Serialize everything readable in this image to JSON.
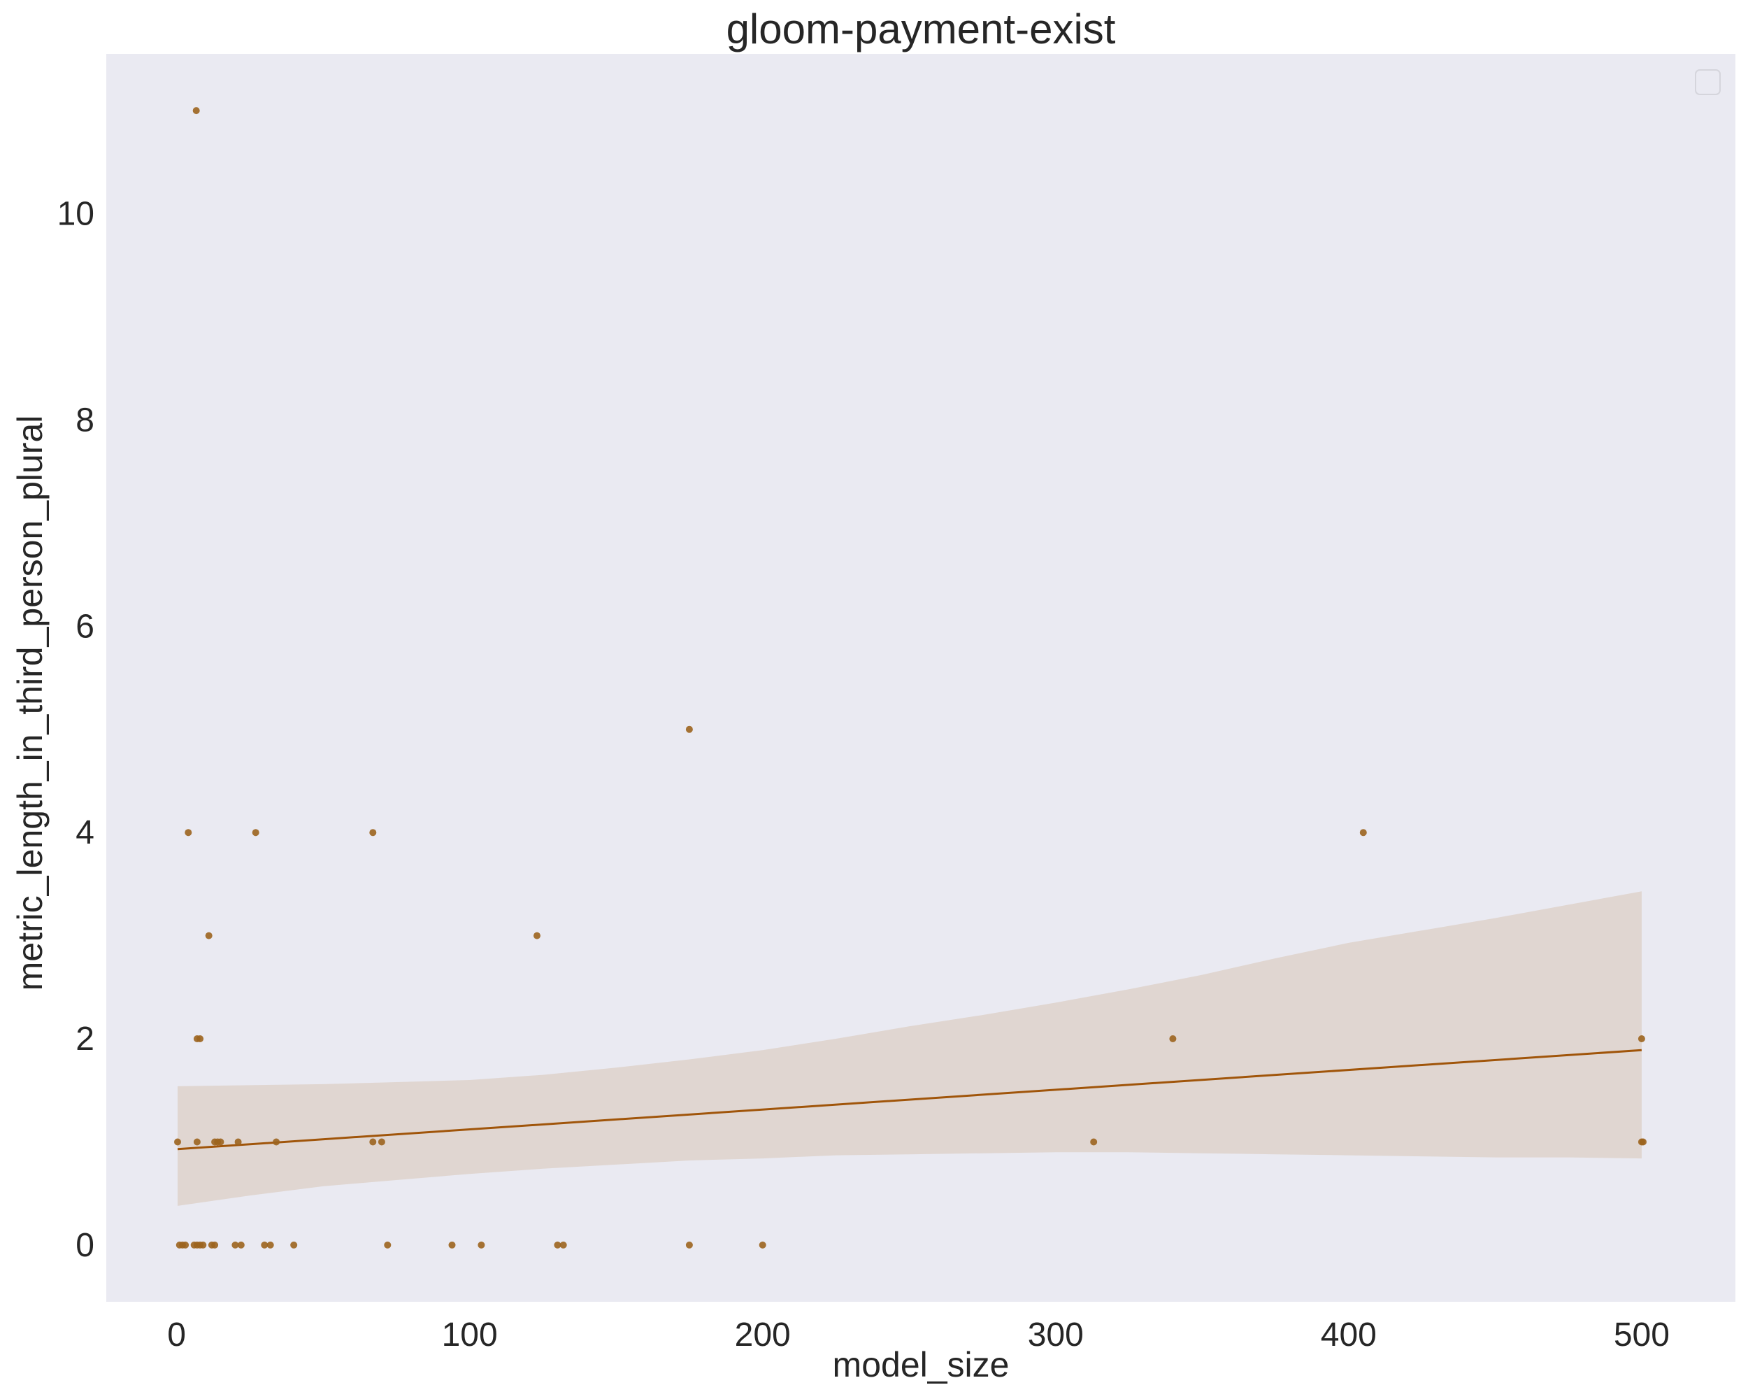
{
  "chart_data": {
    "type": "scatter",
    "title": "gloom-payment-exist",
    "xlabel": "model_size",
    "ylabel": "metric_length_in_third_person_plural",
    "xlim": [
      -24,
      532
    ],
    "ylim": [
      -0.55,
      11.55
    ],
    "xticks": [
      0,
      100,
      200,
      300,
      400,
      500
    ],
    "yticks": [
      0,
      2,
      4,
      6,
      8,
      10
    ],
    "grid": false,
    "legend": "top-right (empty box)",
    "colors": {
      "background": "#eaeaf2",
      "points": "#9c641e",
      "line": "#a0550a",
      "band": "#dfd4cd"
    },
    "points": [
      {
        "x": 1,
        "y": 0
      },
      {
        "x": 0.35,
        "y": 1
      },
      {
        "x": 2,
        "y": 0
      },
      {
        "x": 3,
        "y": 0
      },
      {
        "x": 4,
        "y": 4
      },
      {
        "x": 6,
        "y": 0
      },
      {
        "x": 6.7,
        "y": 11
      },
      {
        "x": 7,
        "y": 1
      },
      {
        "x": 7,
        "y": 2
      },
      {
        "x": 7,
        "y": 0
      },
      {
        "x": 8,
        "y": 2
      },
      {
        "x": 8,
        "y": 0
      },
      {
        "x": 9,
        "y": 0
      },
      {
        "x": 11,
        "y": 3
      },
      {
        "x": 12,
        "y": 0
      },
      {
        "x": 13,
        "y": 1
      },
      {
        "x": 13,
        "y": 0
      },
      {
        "x": 14,
        "y": 1
      },
      {
        "x": 15,
        "y": 1
      },
      {
        "x": 20,
        "y": 0
      },
      {
        "x": 21,
        "y": 1
      },
      {
        "x": 22,
        "y": 0
      },
      {
        "x": 27,
        "y": 4
      },
      {
        "x": 30,
        "y": 0
      },
      {
        "x": 32,
        "y": 0
      },
      {
        "x": 34,
        "y": 1
      },
      {
        "x": 40,
        "y": 0
      },
      {
        "x": 67,
        "y": 1
      },
      {
        "x": 67,
        "y": 4
      },
      {
        "x": 70,
        "y": 1
      },
      {
        "x": 72,
        "y": 0
      },
      {
        "x": 94,
        "y": 0
      },
      {
        "x": 104,
        "y": 0
      },
      {
        "x": 123,
        "y": 3
      },
      {
        "x": 130,
        "y": 0
      },
      {
        "x": 132,
        "y": 0
      },
      {
        "x": 175,
        "y": 5
      },
      {
        "x": 175,
        "y": 0
      },
      {
        "x": 200,
        "y": 0
      },
      {
        "x": 313,
        "y": 1
      },
      {
        "x": 340,
        "y": 2
      },
      {
        "x": 405,
        "y": 4
      },
      {
        "x": 500,
        "y": 2
      },
      {
        "x": 500,
        "y": 1
      },
      {
        "x": 500.5,
        "y": 1
      }
    ],
    "regression_line": [
      {
        "x": 0.35,
        "y": 0.93
      },
      {
        "x": 500,
        "y": 1.89
      }
    ],
    "confidence_band": {
      "x": [
        0.35,
        25,
        50,
        75,
        100,
        125,
        150,
        175,
        200,
        225,
        250,
        275,
        300,
        325,
        350,
        375,
        400,
        425,
        450,
        475,
        500
      ],
      "upper": [
        1.54,
        1.55,
        1.56,
        1.58,
        1.6,
        1.65,
        1.72,
        1.8,
        1.89,
        2.0,
        2.12,
        2.23,
        2.35,
        2.48,
        2.62,
        2.78,
        2.93,
        3.05,
        3.17,
        3.3,
        3.43
      ],
      "lower": [
        0.38,
        0.48,
        0.57,
        0.63,
        0.69,
        0.74,
        0.78,
        0.82,
        0.84,
        0.87,
        0.88,
        0.89,
        0.9,
        0.9,
        0.89,
        0.88,
        0.87,
        0.86,
        0.85,
        0.85,
        0.84
      ]
    }
  }
}
